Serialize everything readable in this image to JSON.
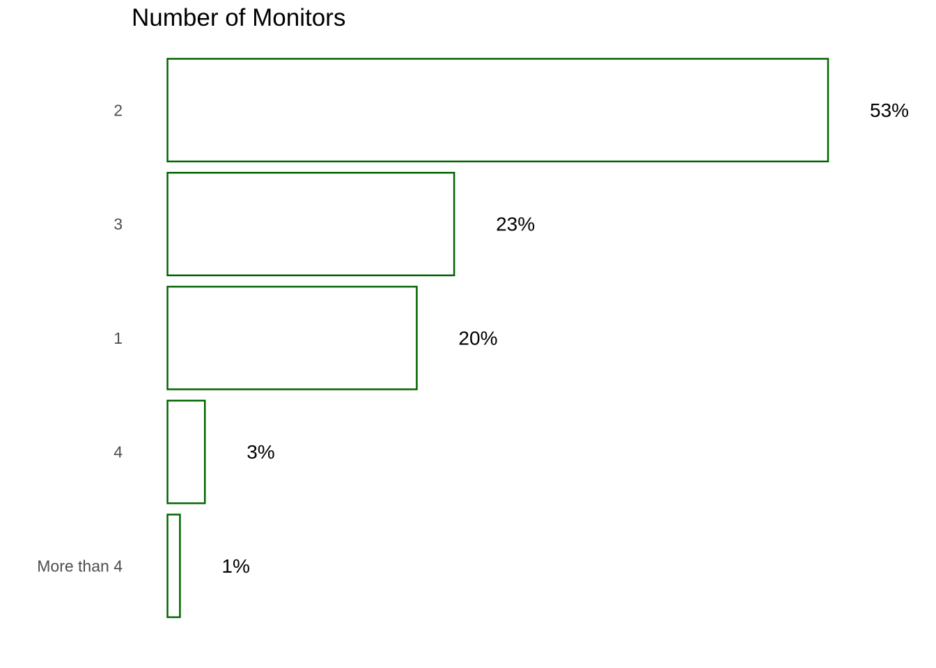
{
  "chart_data": {
    "type": "bar",
    "orientation": "horizontal",
    "title": "Number of Monitors",
    "xlabel": "",
    "ylabel": "",
    "categories": [
      "2",
      "3",
      "1",
      "4",
      "More than 4"
    ],
    "values": [
      53,
      23,
      20,
      3,
      1
    ],
    "value_labels": [
      "53%",
      "23%",
      "20%",
      "3%",
      "1%"
    ],
    "unit": "%",
    "xlim": [
      0,
      53
    ],
    "grid": false,
    "legend": "none",
    "bar_fill": "#ffffff",
    "bar_stroke": "#006400"
  }
}
